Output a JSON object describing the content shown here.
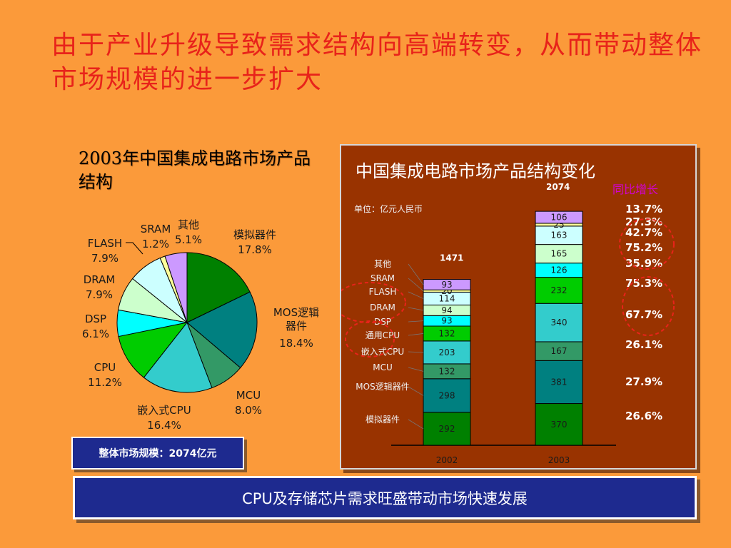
{
  "slide": {
    "title": "由于产业升级导致需求结构向高端转变，从而带动整体市场规模的进一步扩大",
    "bottom_text": "CPU及存储芯片需求旺盛带动市场快速发展",
    "market_size_label": "整体市场规模：2074亿元"
  },
  "chart_data": [
    {
      "type": "pie",
      "title": "2003年中国集成电路市场产品结构",
      "categories": [
        "模拟器件",
        "MOS逻辑器件",
        "MCU",
        "嵌入式CPU",
        "CPU",
        "DSP",
        "DRAM",
        "FLASH",
        "SRAM",
        "其他"
      ],
      "values": [
        17.8,
        18.4,
        8.0,
        16.4,
        11.2,
        6.1,
        7.9,
        7.9,
        1.2,
        5.1
      ],
      "value_labels": [
        "17.8%",
        "18.4%",
        "8.0%",
        "16.4%",
        "11.2%",
        "6.1%",
        "7.9%",
        "7.9%",
        "1.2%",
        "5.1%"
      ],
      "colors": [
        "#008000",
        "#008080",
        "#339966",
        "#33cccc",
        "#00cc00",
        "#00ffff",
        "#ccffcc",
        "#ccffff",
        "#ffff99",
        "#cc99ff"
      ]
    },
    {
      "type": "bar",
      "title": "中国集成电路市场产品结构变化",
      "unit": "单位：亿元人民币",
      "growth_header": "同比增长",
      "categories": [
        "2002",
        "2003"
      ],
      "totals": [
        "1471",
        "2074"
      ],
      "series": [
        {
          "name": "模拟器件",
          "values": [
            292,
            370
          ],
          "color": "#008000",
          "growth": "26.6%"
        },
        {
          "name": "MOS逻辑器件",
          "values": [
            298,
            381
          ],
          "color": "#008080",
          "growth": "27.9%"
        },
        {
          "name": "MCU",
          "values": [
            132,
            167
          ],
          "color": "#339966",
          "growth": "26.1%"
        },
        {
          "name": "嵌入式CPU",
          "values": [
            203,
            340
          ],
          "color": "#33cccc",
          "growth": "67.7%"
        },
        {
          "name": "通用CPU",
          "values": [
            132,
            232
          ],
          "color": "#00cc00",
          "growth": "75.3%"
        },
        {
          "name": "DSP",
          "values": [
            93,
            126
          ],
          "color": "#00ffff",
          "growth": "35.9%"
        },
        {
          "name": "DRAM",
          "values": [
            94,
            165
          ],
          "color": "#ccffcc",
          "growth": "75.2%"
        },
        {
          "name": "FLASH",
          "values": [
            114,
            163
          ],
          "color": "#ccffff",
          "growth": "42.7%"
        },
        {
          "name": "SRAM",
          "values": [
            20,
            25
          ],
          "color": "#ffff99",
          "growth": "27.3%"
        },
        {
          "name": "其他",
          "values": [
            93,
            106
          ],
          "color": "#cc99ff",
          "growth": "13.7%"
        }
      ]
    }
  ]
}
